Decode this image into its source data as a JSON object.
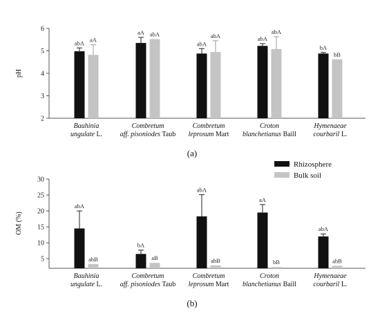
{
  "colors": {
    "rhizosphere": "#111111",
    "bulk_soil": "#c4c4c4",
    "axis": "#555555"
  },
  "chart_data": [
    {
      "type": "bar",
      "panel_label": "(a)",
      "ylabel": "pH",
      "ylim": [
        2,
        6
      ],
      "yticks": [
        "2",
        "3",
        "4",
        "5",
        "6"
      ],
      "categories": [
        {
          "line1": "Bauhinia",
          "line2_italic": "ungulate",
          "line2_plain": " L."
        },
        {
          "line1": "Combretum",
          "line2_italic": "aff. pisoniodes",
          "line2_plain": " Taub"
        },
        {
          "line1": "Combretum",
          "line2_italic": "leprosum",
          "line2_plain": " Mart"
        },
        {
          "line1": "Croton",
          "line2_italic": "blanchetianus",
          "line2_plain": " Baill"
        },
        {
          "line1": "Hymenaeae",
          "line2_italic": "courbaril",
          "line2_plain": " L."
        }
      ],
      "series": [
        {
          "key": "rhizosphere",
          "values": [
            4.98,
            5.35,
            4.88,
            5.22,
            4.88
          ],
          "errors": [
            0.15,
            0.25,
            0.22,
            0.1,
            0.05
          ],
          "labels": [
            "abA",
            "aA",
            "abA",
            "abA",
            "bA"
          ]
        },
        {
          "key": "bulk_soil",
          "values": [
            4.82,
            5.52,
            4.95,
            5.08,
            4.62
          ],
          "errors": [
            0.45,
            0.0,
            0.5,
            0.55,
            0.0
          ],
          "labels": [
            "aA",
            "abA",
            "abA",
            "abA",
            "bB"
          ]
        }
      ]
    },
    {
      "type": "bar",
      "panel_label": "(b)",
      "ylabel": "OM (%)",
      "ylim": [
        2,
        30
      ],
      "yticks": [
        "5",
        "10",
        "15",
        "20",
        "25",
        "30"
      ],
      "categories": [
        {
          "line1": "Bauhinia",
          "line2_italic": "ungulate",
          "line2_plain": " L."
        },
        {
          "line1": "Combretum",
          "line2_italic": "aff. pisoniodes",
          "line2_plain": " Taub"
        },
        {
          "line1": "Combretum",
          "line2_italic": "leprosum",
          "line2_plain": " Mart"
        },
        {
          "line1": "Croton",
          "line2_italic": "blanchetianus",
          "line2_plain": " Baill"
        },
        {
          "line1": "Hymenaeae",
          "line2_italic": "courbaril",
          "line2_plain": " L."
        }
      ],
      "legend": {
        "position": "top-right",
        "items": [
          "Rhizosphere",
          "Bulk soil"
        ]
      },
      "series": [
        {
          "key": "rhizosphere",
          "name": "Rhizosphere",
          "values": [
            14.5,
            6.5,
            18.3,
            19.5,
            12.0
          ],
          "errors": [
            5.5,
            1.2,
            6.8,
            2.5,
            0.8
          ],
          "labels": [
            "abA",
            "bA",
            "abA",
            "aA",
            "abA"
          ]
        },
        {
          "key": "bulk_soil",
          "name": "Bulk soil",
          "values": [
            3.3,
            3.7,
            2.9,
            2.4,
            2.8
          ],
          "errors": [
            0.0,
            0.0,
            0.0,
            0.0,
            0.0
          ],
          "labels": [
            "abB",
            "aB",
            "abB",
            "bB",
            "abB"
          ]
        }
      ]
    }
  ]
}
